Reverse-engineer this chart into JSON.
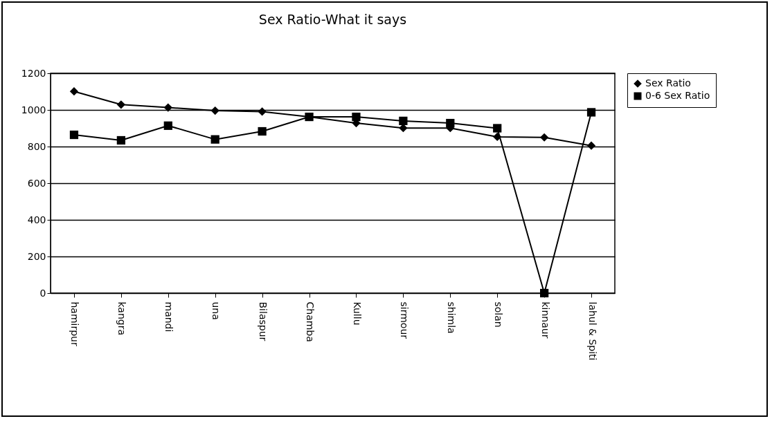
{
  "chart_data": {
    "type": "line",
    "title": "Sex Ratio-What it says",
    "categories": [
      "hamirpur",
      "kangra",
      "mandi",
      "una",
      "Bilaspur",
      "Chamba",
      "Kullu",
      "sirmour",
      "shimla",
      "solan",
      "kinnaur",
      "lahul & Spiti"
    ],
    "series": [
      {
        "name": "Sex Ratio",
        "color": "#000000",
        "marker": "diamond",
        "values": [
          1101,
          1029,
          1013,
          996,
          991,
          962,
          928,
          901,
          901,
          853,
          850,
          805
        ]
      },
      {
        "name": "0-6 Sex Ratio",
        "color": "#000000",
        "marker": "square",
        "values": [
          864,
          834,
          914,
          839,
          883,
          962,
          962,
          940,
          928,
          900,
          0,
          987
        ]
      }
    ],
    "ylim": [
      0,
      1200
    ],
    "yticks": [
      0,
      200,
      400,
      600,
      800,
      1000,
      1200
    ],
    "grid": "y",
    "legend": "right"
  }
}
